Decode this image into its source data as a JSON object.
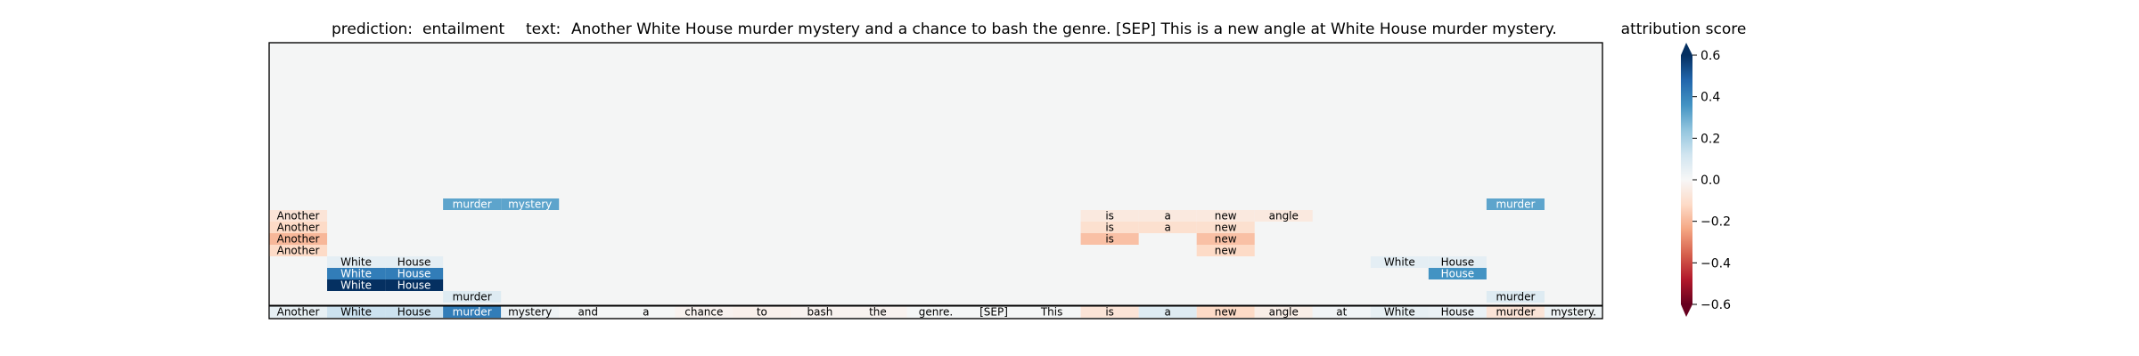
{
  "chart_data": {
    "type": "heatmap",
    "title": {
      "prediction_label": "prediction:",
      "prediction_value": "entailment",
      "text_label": "text:",
      "text_value": "Another White House murder mystery and a chance to bash the genre. [SEP] This is a new angle at White House murder mystery."
    },
    "tokens": [
      "Another",
      "White",
      "House",
      "murder",
      "mystery",
      "and",
      "a",
      "chance",
      "to",
      "bash",
      "the",
      "genre.",
      "[SEP]",
      "This",
      "is",
      "a",
      "new",
      "angle",
      "at",
      "White",
      "House",
      "murder",
      "mystery."
    ],
    "token_scores": [
      0.05,
      0.13,
      0.13,
      0.42,
      0.03,
      0.01,
      0.01,
      -0.02,
      -0.03,
      -0.02,
      -0.02,
      0.01,
      0.01,
      0.01,
      -0.08,
      0.08,
      -0.12,
      -0.04,
      0.02,
      0.05,
      0.04,
      -0.08,
      0.03
    ],
    "rows_top_to_bottom": [
      {
        "cells": [
          {
            "col": 3,
            "label": "murder",
            "score": 0.32
          },
          {
            "col": 4,
            "label": "mystery",
            "score": 0.32
          },
          {
            "col": 21,
            "label": "murder",
            "score": 0.32
          }
        ]
      },
      {
        "cells": [
          {
            "col": 0,
            "label": "Another",
            "score": -0.08
          },
          {
            "col": 14,
            "label": "is",
            "score": -0.06
          },
          {
            "col": 15,
            "label": "a",
            "score": -0.06
          },
          {
            "col": 16,
            "label": "new",
            "score": -0.06
          },
          {
            "col": 17,
            "label": "angle",
            "score": -0.06
          }
        ]
      },
      {
        "cells": [
          {
            "col": 0,
            "label": "Another",
            "score": -0.12
          },
          {
            "col": 14,
            "label": "is",
            "score": -0.1
          },
          {
            "col": 15,
            "label": "a",
            "score": -0.1
          },
          {
            "col": 16,
            "label": "new",
            "score": -0.1
          }
        ]
      },
      {
        "cells": [
          {
            "col": 0,
            "label": "Another",
            "score": -0.2
          },
          {
            "col": 14,
            "label": "is",
            "score": -0.18
          },
          {
            "col": 16,
            "label": "new",
            "score": -0.18
          }
        ]
      },
      {
        "cells": [
          {
            "col": 0,
            "label": "Another",
            "score": -0.12
          },
          {
            "col": 16,
            "label": "new",
            "score": -0.12
          }
        ]
      },
      {
        "cells": [
          {
            "col": 1,
            "label": "White",
            "score": 0.06
          },
          {
            "col": 2,
            "label": "House",
            "score": 0.06
          },
          {
            "col": 19,
            "label": "White",
            "score": 0.06
          },
          {
            "col": 20,
            "label": "House",
            "score": 0.06
          }
        ]
      },
      {
        "cells": [
          {
            "col": 1,
            "label": "White",
            "score": 0.42
          },
          {
            "col": 2,
            "label": "House",
            "score": 0.42
          },
          {
            "col": 20,
            "label": "House",
            "score": 0.36
          }
        ]
      },
      {
        "cells": [
          {
            "col": 1,
            "label": "White",
            "score": 0.65
          },
          {
            "col": 2,
            "label": "House",
            "score": 0.65
          }
        ]
      },
      {
        "cells": [
          {
            "col": 3,
            "label": "murder",
            "score": 0.08
          },
          {
            "col": 21,
            "label": "murder",
            "score": 0.08
          }
        ]
      }
    ],
    "colorbar": {
      "label": "attribution score",
      "range": [
        -0.6,
        0.6
      ],
      "ticks": [
        "0.6",
        "0.4",
        "0.2",
        "0.0",
        "−0.2",
        "−0.4",
        "−0.6"
      ],
      "tick_values": [
        0.6,
        0.4,
        0.2,
        0.0,
        -0.2,
        -0.4,
        -0.6
      ],
      "colormap": "RdBu"
    },
    "colors": {
      "background": "#f4f5f5",
      "positive_dark": "#053061",
      "negative_dark": "#67001f"
    }
  }
}
